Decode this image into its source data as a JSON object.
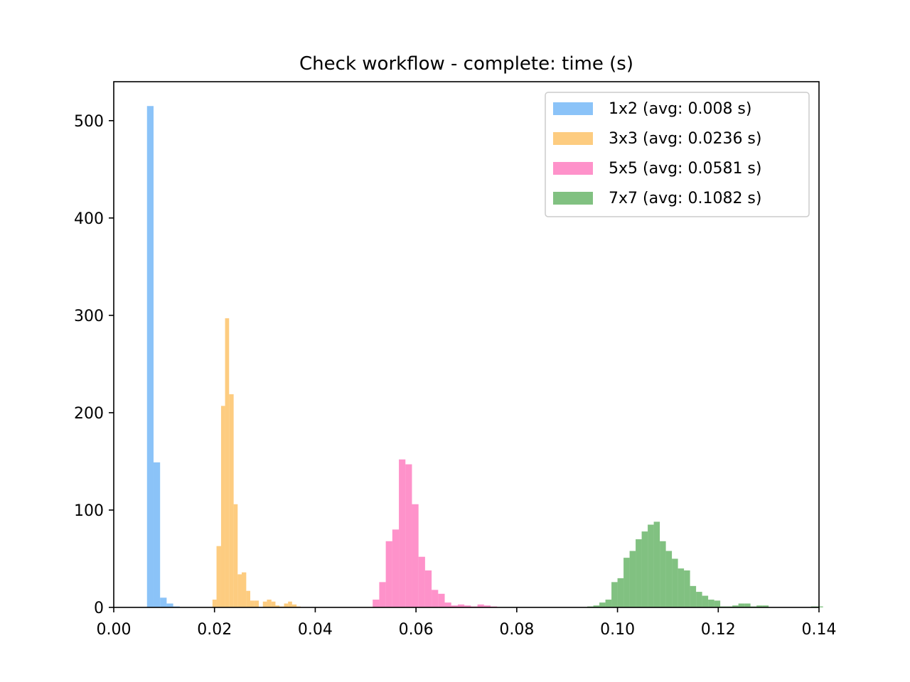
{
  "chart_data": {
    "type": "bar",
    "title": "Check workflow - complete: time (s)",
    "xlabel": "",
    "ylabel": "",
    "xlim": [
      0.0,
      0.14
    ],
    "ylim": [
      0,
      540
    ],
    "xticks": [
      0.0,
      0.02,
      0.04,
      0.06,
      0.08,
      0.1,
      0.12,
      0.14
    ],
    "xtick_labels": [
      "0.00",
      "0.02",
      "0.04",
      "0.06",
      "0.08",
      "0.10",
      "0.12",
      "0.14"
    ],
    "yticks": [
      0,
      100,
      200,
      300,
      400,
      500
    ],
    "ytick_labels": [
      "0",
      "100",
      "200",
      "300",
      "400",
      "500"
    ],
    "grid": false,
    "legend_position": "top-right",
    "series": [
      {
        "name": "1x2 (avg: 0.008 s)",
        "color": "#5aaaf5",
        "bin_edges": [
          0.0066,
          0.0079,
          0.0092,
          0.0105,
          0.0118,
          0.0131
        ],
        "counts": [
          515,
          149,
          10,
          4,
          1
        ]
      },
      {
        "name": "3x3 (avg: 0.0236 s)",
        "color": "#fcb74a",
        "bin_edges": [
          0.0196,
          0.0204,
          0.0213,
          0.0221,
          0.0229,
          0.0238,
          0.0246,
          0.0254,
          0.0263,
          0.0271,
          0.0279,
          0.0288,
          0.0296,
          0.0304,
          0.0313,
          0.0321,
          0.0329,
          0.0338,
          0.0346,
          0.0354,
          0.0363,
          0.0371,
          0.0379
        ],
        "counts": [
          8,
          63,
          207,
          297,
          219,
          106,
          34,
          36,
          17,
          7,
          7,
          0,
          6,
          8,
          6,
          2,
          1,
          4,
          6,
          3,
          1,
          0
        ]
      },
      {
        "name": "5x5 (avg: 0.0581 s)",
        "color": "#fd64b4",
        "bin_edges": [
          0.0514,
          0.0527,
          0.054,
          0.0553,
          0.0566,
          0.0579,
          0.0592,
          0.0605,
          0.0618,
          0.0631,
          0.0644,
          0.0657,
          0.067,
          0.0683,
          0.0696,
          0.0709,
          0.0722,
          0.0735,
          0.0748,
          0.0761
        ],
        "counts": [
          8,
          26,
          68,
          80,
          152,
          147,
          106,
          52,
          38,
          18,
          14,
          5,
          2,
          3,
          2,
          1,
          3,
          2,
          1
        ]
      },
      {
        "name": "7x7 (avg: 0.1082 s)",
        "color": "#4ca64c",
        "bin_edges": [
          0.094,
          0.0952,
          0.0964,
          0.0976,
          0.0988,
          0.1,
          0.1012,
          0.1024,
          0.1036,
          0.1048,
          0.106,
          0.1072,
          0.1084,
          0.1096,
          0.1108,
          0.112,
          0.1132,
          0.1144,
          0.1156,
          0.1168,
          0.118,
          0.1192,
          0.1204,
          0.1216,
          0.1228,
          0.124,
          0.1252,
          0.1264,
          0.1276,
          0.1288,
          0.13,
          0.1312,
          0.1324,
          0.1336,
          0.1348,
          0.136,
          0.1372,
          0.1384,
          0.1396,
          0.1408
        ],
        "counts": [
          1,
          2,
          5,
          8,
          26,
          30,
          51,
          58,
          70,
          78,
          85,
          88,
          68,
          58,
          50,
          40,
          38,
          22,
          16,
          12,
          8,
          7,
          1,
          1,
          2,
          4,
          4,
          1,
          2,
          2,
          0,
          0,
          0,
          0,
          0,
          0,
          0,
          1,
          1
        ]
      }
    ]
  }
}
